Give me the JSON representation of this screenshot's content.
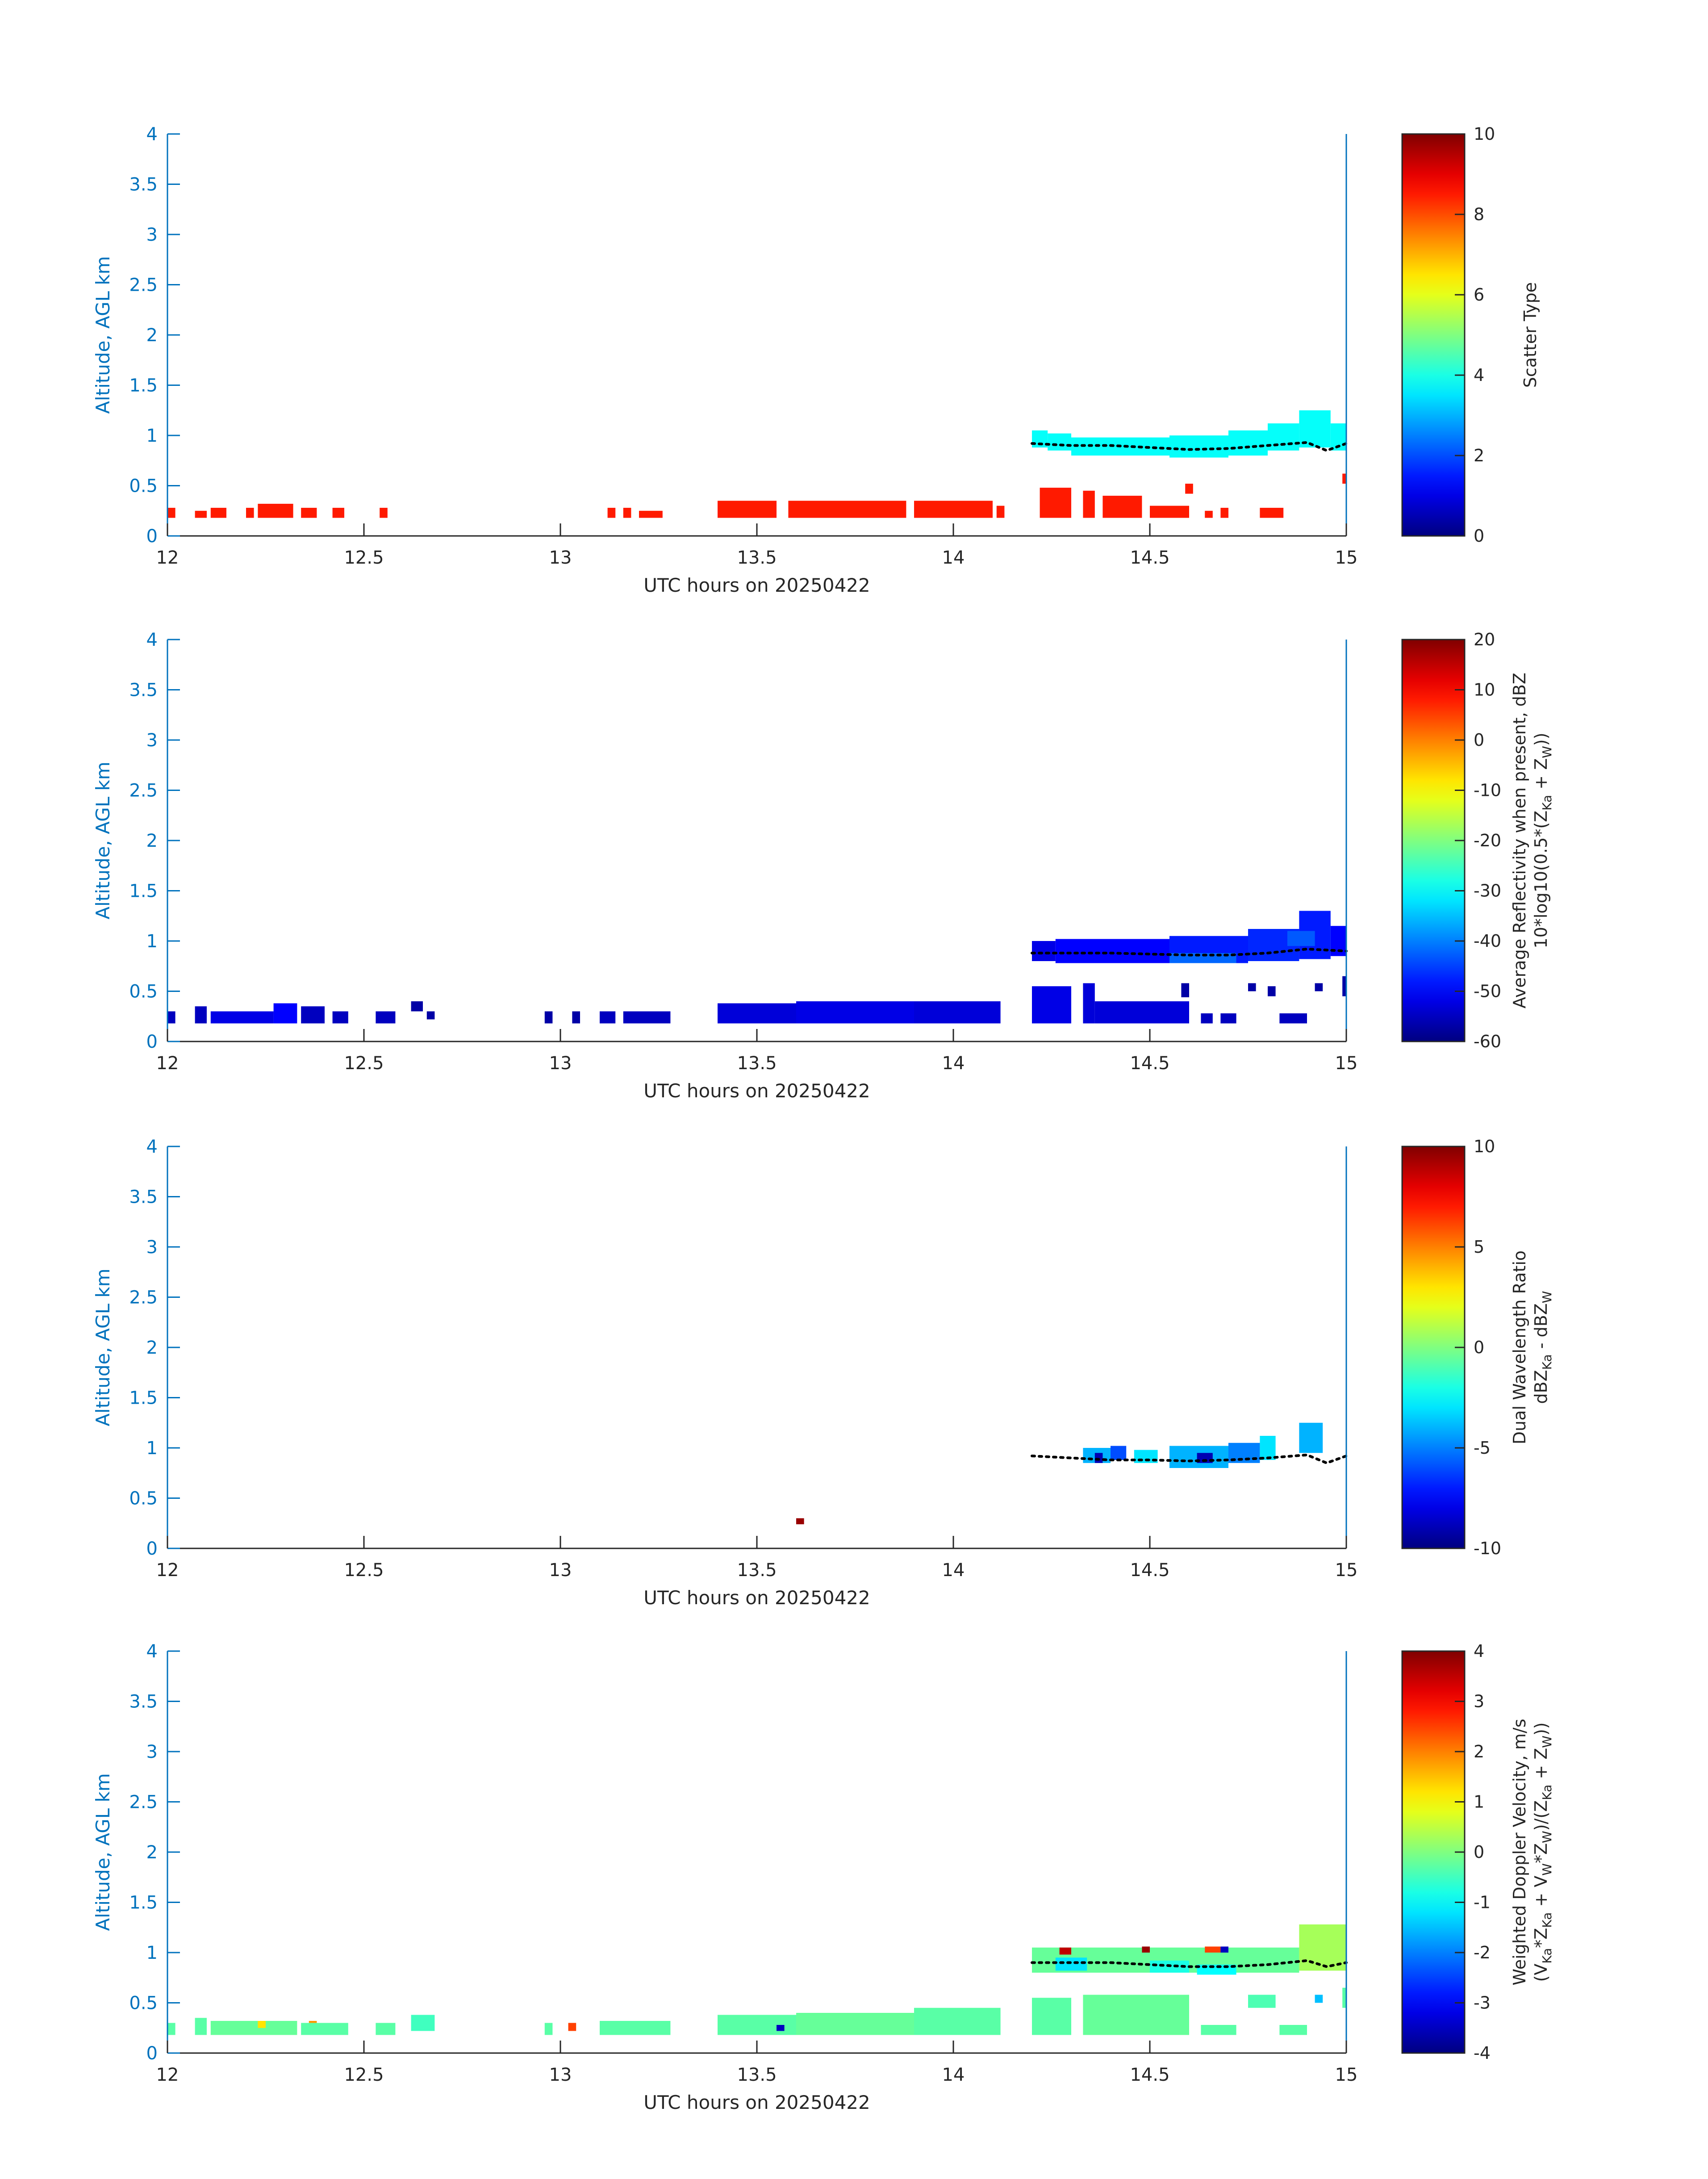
{
  "figure": {
    "date": "20250422"
  },
  "chart_data": [
    {
      "type": "heatmap",
      "title": "",
      "xlabel": "UTC hours on 20250422",
      "ylabel": "Altitude, AGL km",
      "xlim": [
        12,
        15
      ],
      "ylim": [
        0,
        4
      ],
      "xticks": [
        "12",
        "12.5",
        "13",
        "13.5",
        "14",
        "14.5",
        "15"
      ],
      "yticks": [
        "0",
        "0.5",
        "1",
        "1.5",
        "2",
        "2.5",
        "3",
        "3.5",
        "4"
      ],
      "colorbar": {
        "label_lines": [
          "Scatter Type"
        ],
        "clim": [
          0,
          10
        ],
        "ticks": [
          "0",
          "2",
          "4",
          "6",
          "8",
          "10"
        ]
      },
      "cloud_base": [
        [
          14.2,
          0.92
        ],
        [
          14.3,
          0.9
        ],
        [
          14.4,
          0.9
        ],
        [
          14.5,
          0.88
        ],
        [
          14.6,
          0.86
        ],
        [
          14.7,
          0.87
        ],
        [
          14.8,
          0.9
        ],
        [
          14.9,
          0.93
        ],
        [
          14.95,
          0.85
        ],
        [
          15.0,
          0.92
        ]
      ],
      "cells": [
        {
          "x0": 12.0,
          "x1": 12.02,
          "y0": 0.18,
          "y1": 0.28,
          "v": 8.5
        },
        {
          "x0": 12.07,
          "x1": 12.1,
          "y0": 0.18,
          "y1": 0.25,
          "v": 8.5
        },
        {
          "x0": 12.11,
          "x1": 12.15,
          "y0": 0.18,
          "y1": 0.28,
          "v": 8.5
        },
        {
          "x0": 12.2,
          "x1": 12.22,
          "y0": 0.18,
          "y1": 0.28,
          "v": 8.5
        },
        {
          "x0": 12.23,
          "x1": 12.32,
          "y0": 0.18,
          "y1": 0.32,
          "v": 8.5
        },
        {
          "x0": 12.34,
          "x1": 12.38,
          "y0": 0.18,
          "y1": 0.28,
          "v": 8.5
        },
        {
          "x0": 12.42,
          "x1": 12.45,
          "y0": 0.18,
          "y1": 0.28,
          "v": 8.5
        },
        {
          "x0": 12.54,
          "x1": 12.56,
          "y0": 0.18,
          "y1": 0.28,
          "v": 8.5
        },
        {
          "x0": 13.12,
          "x1": 13.14,
          "y0": 0.18,
          "y1": 0.28,
          "v": 8.5
        },
        {
          "x0": 13.16,
          "x1": 13.18,
          "y0": 0.18,
          "y1": 0.28,
          "v": 8.5
        },
        {
          "x0": 13.2,
          "x1": 13.26,
          "y0": 0.18,
          "y1": 0.25,
          "v": 8.5
        },
        {
          "x0": 13.4,
          "x1": 13.55,
          "y0": 0.18,
          "y1": 0.35,
          "v": 8.5
        },
        {
          "x0": 13.58,
          "x1": 13.88,
          "y0": 0.18,
          "y1": 0.35,
          "v": 8.5
        },
        {
          "x0": 13.9,
          "x1": 14.1,
          "y0": 0.18,
          "y1": 0.35,
          "v": 8.5
        },
        {
          "x0": 14.11,
          "x1": 14.13,
          "y0": 0.18,
          "y1": 0.3,
          "v": 8.5
        },
        {
          "x0": 14.22,
          "x1": 14.3,
          "y0": 0.18,
          "y1": 0.48,
          "v": 8.5
        },
        {
          "x0": 14.33,
          "x1": 14.36,
          "y0": 0.18,
          "y1": 0.45,
          "v": 8.5
        },
        {
          "x0": 14.38,
          "x1": 14.48,
          "y0": 0.18,
          "y1": 0.4,
          "v": 8.5
        },
        {
          "x0": 14.5,
          "x1": 14.6,
          "y0": 0.18,
          "y1": 0.3,
          "v": 8.5
        },
        {
          "x0": 14.59,
          "x1": 14.61,
          "y0": 0.42,
          "y1": 0.52,
          "v": 8.5
        },
        {
          "x0": 14.64,
          "x1": 14.66,
          "y0": 0.18,
          "y1": 0.25,
          "v": 8.5
        },
        {
          "x0": 14.68,
          "x1": 14.7,
          "y0": 0.18,
          "y1": 0.28,
          "v": 8.5
        },
        {
          "x0": 14.78,
          "x1": 14.84,
          "y0": 0.18,
          "y1": 0.28,
          "v": 8.5
        },
        {
          "x0": 14.99,
          "x1": 15.0,
          "y0": 0.52,
          "y1": 0.62,
          "v": 8.5
        },
        {
          "x0": 14.2,
          "x1": 14.24,
          "y0": 0.88,
          "y1": 1.05,
          "v": 3.8
        },
        {
          "x0": 14.24,
          "x1": 14.3,
          "y0": 0.85,
          "y1": 1.02,
          "v": 3.8
        },
        {
          "x0": 14.3,
          "x1": 14.55,
          "y0": 0.8,
          "y1": 0.98,
          "v": 3.8
        },
        {
          "x0": 14.55,
          "x1": 14.7,
          "y0": 0.78,
          "y1": 1.0,
          "v": 3.8
        },
        {
          "x0": 14.7,
          "x1": 14.8,
          "y0": 0.8,
          "y1": 1.05,
          "v": 3.8
        },
        {
          "x0": 14.8,
          "x1": 14.88,
          "y0": 0.85,
          "y1": 1.12,
          "v": 3.8
        },
        {
          "x0": 14.88,
          "x1": 14.96,
          "y0": 0.88,
          "y1": 1.25,
          "v": 3.8
        },
        {
          "x0": 14.96,
          "x1": 15.0,
          "y0": 0.85,
          "y1": 1.12,
          "v": 3.8
        }
      ]
    },
    {
      "type": "heatmap",
      "title": "",
      "xlabel": "UTC hours on 20250422",
      "ylabel": "Altitude, AGL km",
      "xlim": [
        12,
        15
      ],
      "ylim": [
        0,
        4
      ],
      "xticks": [
        "12",
        "12.5",
        "13",
        "13.5",
        "14",
        "14.5",
        "15"
      ],
      "yticks": [
        "0",
        "0.5",
        "1",
        "1.5",
        "2",
        "2.5",
        "3",
        "3.5",
        "4"
      ],
      "colorbar": {
        "label_lines": [
          "Average Reflectivity when present, dBZ",
          "10*log10(0.5*(Z_Ka + Z_W))"
        ],
        "clim": [
          -60,
          20
        ],
        "ticks": [
          "-60",
          "-50",
          "-40",
          "-30",
          "-20",
          "-10",
          "0",
          "10",
          "20"
        ]
      },
      "cloud_base": [
        [
          14.2,
          0.88
        ],
        [
          14.3,
          0.88
        ],
        [
          14.4,
          0.88
        ],
        [
          14.5,
          0.87
        ],
        [
          14.6,
          0.86
        ],
        [
          14.7,
          0.86
        ],
        [
          14.8,
          0.88
        ],
        [
          14.9,
          0.92
        ],
        [
          15.0,
          0.9
        ]
      ],
      "cells": [
        {
          "x0": 12.0,
          "x1": 12.02,
          "y0": 0.18,
          "y1": 0.3,
          "v": -55
        },
        {
          "x0": 12.07,
          "x1": 12.1,
          "y0": 0.18,
          "y1": 0.35,
          "v": -55
        },
        {
          "x0": 12.11,
          "x1": 12.27,
          "y0": 0.18,
          "y1": 0.3,
          "v": -52
        },
        {
          "x0": 12.27,
          "x1": 12.33,
          "y0": 0.18,
          "y1": 0.38,
          "v": -50
        },
        {
          "x0": 12.34,
          "x1": 12.4,
          "y0": 0.18,
          "y1": 0.35,
          "v": -55
        },
        {
          "x0": 12.42,
          "x1": 12.46,
          "y0": 0.18,
          "y1": 0.3,
          "v": -55
        },
        {
          "x0": 12.53,
          "x1": 12.58,
          "y0": 0.18,
          "y1": 0.3,
          "v": -55
        },
        {
          "x0": 12.62,
          "x1": 12.65,
          "y0": 0.3,
          "y1": 0.4,
          "v": -57
        },
        {
          "x0": 12.66,
          "x1": 12.68,
          "y0": 0.22,
          "y1": 0.3,
          "v": -57
        },
        {
          "x0": 12.96,
          "x1": 12.98,
          "y0": 0.18,
          "y1": 0.3,
          "v": -57
        },
        {
          "x0": 13.03,
          "x1": 13.05,
          "y0": 0.18,
          "y1": 0.3,
          "v": -57
        },
        {
          "x0": 13.1,
          "x1": 13.14,
          "y0": 0.18,
          "y1": 0.3,
          "v": -55
        },
        {
          "x0": 13.16,
          "x1": 13.28,
          "y0": 0.18,
          "y1": 0.3,
          "v": -55
        },
        {
          "x0": 13.4,
          "x1": 13.6,
          "y0": 0.18,
          "y1": 0.38,
          "v": -53
        },
        {
          "x0": 13.6,
          "x1": 13.9,
          "y0": 0.18,
          "y1": 0.4,
          "v": -52
        },
        {
          "x0": 13.9,
          "x1": 14.12,
          "y0": 0.18,
          "y1": 0.4,
          "v": -53
        },
        {
          "x0": 14.2,
          "x1": 14.3,
          "y0": 0.18,
          "y1": 0.55,
          "v": -52
        },
        {
          "x0": 14.33,
          "x1": 14.36,
          "y0": 0.18,
          "y1": 0.58,
          "v": -53
        },
        {
          "x0": 14.36,
          "x1": 14.6,
          "y0": 0.18,
          "y1": 0.4,
          "v": -53
        },
        {
          "x0": 14.58,
          "x1": 14.6,
          "y0": 0.44,
          "y1": 0.58,
          "v": -57
        },
        {
          "x0": 14.63,
          "x1": 14.66,
          "y0": 0.18,
          "y1": 0.28,
          "v": -55
        },
        {
          "x0": 14.68,
          "x1": 14.72,
          "y0": 0.18,
          "y1": 0.28,
          "v": -55
        },
        {
          "x0": 14.75,
          "x1": 14.77,
          "y0": 0.5,
          "y1": 0.58,
          "v": -57
        },
        {
          "x0": 14.8,
          "x1": 14.82,
          "y0": 0.45,
          "y1": 0.55,
          "v": -57
        },
        {
          "x0": 14.83,
          "x1": 14.9,
          "y0": 0.18,
          "y1": 0.28,
          "v": -55
        },
        {
          "x0": 14.92,
          "x1": 14.94,
          "y0": 0.5,
          "y1": 0.58,
          "v": -57
        },
        {
          "x0": 14.99,
          "x1": 15.0,
          "y0": 0.45,
          "y1": 0.65,
          "v": -57
        },
        {
          "x0": 14.2,
          "x1": 14.26,
          "y0": 0.8,
          "y1": 1.0,
          "v": -52
        },
        {
          "x0": 14.26,
          "x1": 14.55,
          "y0": 0.78,
          "y1": 1.02,
          "v": -50
        },
        {
          "x0": 14.55,
          "x1": 14.75,
          "y0": 0.78,
          "y1": 1.05,
          "v": -48
        },
        {
          "x0": 14.75,
          "x1": 14.88,
          "y0": 0.8,
          "y1": 1.12,
          "v": -47
        },
        {
          "x0": 14.88,
          "x1": 14.96,
          "y0": 0.82,
          "y1": 1.3,
          "v": -48
        },
        {
          "x0": 14.96,
          "x1": 15.0,
          "y0": 0.85,
          "y1": 1.15,
          "v": -50
        },
        {
          "x0": 14.55,
          "x1": 14.72,
          "y0": 0.78,
          "y1": 0.88,
          "v": -42
        },
        {
          "x0": 14.85,
          "x1": 14.92,
          "y0": 0.95,
          "y1": 1.1,
          "v": -43
        }
      ]
    },
    {
      "type": "heatmap",
      "title": "",
      "xlabel": "UTC hours on 20250422",
      "ylabel": "Altitude, AGL km",
      "xlim": [
        12,
        15
      ],
      "ylim": [
        0,
        4
      ],
      "xticks": [
        "12",
        "12.5",
        "13",
        "13.5",
        "14",
        "14.5",
        "15"
      ],
      "yticks": [
        "0",
        "0.5",
        "1",
        "1.5",
        "2",
        "2.5",
        "3",
        "3.5",
        "4"
      ],
      "colorbar": {
        "label_lines": [
          "Dual Wavelength Ratio",
          "dBZ_Ka - dBZ_W"
        ],
        "clim": [
          -10,
          10
        ],
        "ticks": [
          "-10",
          "-5",
          "0",
          "5",
          "10"
        ]
      },
      "cloud_base": [
        [
          14.2,
          0.92
        ],
        [
          14.3,
          0.9
        ],
        [
          14.4,
          0.88
        ],
        [
          14.5,
          0.88
        ],
        [
          14.6,
          0.87
        ],
        [
          14.7,
          0.88
        ],
        [
          14.8,
          0.9
        ],
        [
          14.9,
          0.93
        ],
        [
          14.95,
          0.85
        ],
        [
          15.0,
          0.92
        ]
      ],
      "cells": [
        {
          "x0": 13.6,
          "x1": 13.62,
          "y0": 0.24,
          "y1": 0.3,
          "v": 9.5
        },
        {
          "x0": 14.33,
          "x1": 14.4,
          "y0": 0.85,
          "y1": 1.0,
          "v": -4
        },
        {
          "x0": 14.4,
          "x1": 14.44,
          "y0": 0.88,
          "y1": 1.02,
          "v": -6
        },
        {
          "x0": 14.46,
          "x1": 14.52,
          "y0": 0.85,
          "y1": 0.98,
          "v": -3
        },
        {
          "x0": 14.55,
          "x1": 14.7,
          "y0": 0.8,
          "y1": 1.02,
          "v": -4
        },
        {
          "x0": 14.7,
          "x1": 14.78,
          "y0": 0.85,
          "y1": 1.05,
          "v": -5
        },
        {
          "x0": 14.78,
          "x1": 14.82,
          "y0": 0.88,
          "y1": 1.12,
          "v": -3
        },
        {
          "x0": 14.88,
          "x1": 14.94,
          "y0": 0.95,
          "y1": 1.25,
          "v": -4
        },
        {
          "x0": 14.62,
          "x1": 14.66,
          "y0": 0.85,
          "y1": 0.95,
          "v": -9
        },
        {
          "x0": 14.36,
          "x1": 14.38,
          "y0": 0.85,
          "y1": 0.95,
          "v": -9
        }
      ]
    },
    {
      "type": "heatmap",
      "title": "",
      "xlabel": "UTC hours on 20250422",
      "ylabel": "Altitude, AGL km",
      "xlim": [
        12,
        15
      ],
      "ylim": [
        0,
        4
      ],
      "xticks": [
        "12",
        "12.5",
        "13",
        "13.5",
        "14",
        "14.5",
        "15"
      ],
      "yticks": [
        "0",
        "0.5",
        "1",
        "1.5",
        "2",
        "2.5",
        "3",
        "3.5",
        "4"
      ],
      "colorbar": {
        "label_lines": [
          "Weighted Doppler Velocity, m/s",
          "(V_Ka*Z_Ka + V_W*Z_W)/(Z_Ka + Z_W))"
        ],
        "clim": [
          -4,
          4
        ],
        "ticks": [
          "-4",
          "-3",
          "-2",
          "-1",
          "0",
          "1",
          "2",
          "3",
          "4"
        ]
      },
      "cloud_base": [
        [
          14.2,
          0.9
        ],
        [
          14.3,
          0.9
        ],
        [
          14.4,
          0.9
        ],
        [
          14.5,
          0.88
        ],
        [
          14.6,
          0.86
        ],
        [
          14.7,
          0.86
        ],
        [
          14.8,
          0.88
        ],
        [
          14.9,
          0.92
        ],
        [
          14.95,
          0.86
        ],
        [
          15.0,
          0.9
        ]
      ],
      "cells": [
        {
          "x0": 12.0,
          "x1": 12.02,
          "y0": 0.18,
          "y1": 0.3,
          "v": -0.3
        },
        {
          "x0": 12.07,
          "x1": 12.1,
          "y0": 0.18,
          "y1": 0.35,
          "v": -0.3
        },
        {
          "x0": 12.11,
          "x1": 12.33,
          "y0": 0.18,
          "y1": 0.32,
          "v": -0.2
        },
        {
          "x0": 12.23,
          "x1": 12.25,
          "y0": 0.25,
          "y1": 0.32,
          "v": 1.2
        },
        {
          "x0": 12.36,
          "x1": 12.38,
          "y0": 0.25,
          "y1": 0.32,
          "v": 1.8
        },
        {
          "x0": 12.34,
          "x1": 12.46,
          "y0": 0.18,
          "y1": 0.3,
          "v": -0.3
        },
        {
          "x0": 12.53,
          "x1": 12.58,
          "y0": 0.18,
          "y1": 0.3,
          "v": -0.3
        },
        {
          "x0": 12.62,
          "x1": 12.68,
          "y0": 0.22,
          "y1": 0.38,
          "v": -0.5
        },
        {
          "x0": 12.96,
          "x1": 12.98,
          "y0": 0.18,
          "y1": 0.3,
          "v": -0.3
        },
        {
          "x0": 13.02,
          "x1": 13.04,
          "y0": 0.22,
          "y1": 0.3,
          "v": 2.5
        },
        {
          "x0": 13.1,
          "x1": 13.28,
          "y0": 0.18,
          "y1": 0.32,
          "v": -0.3
        },
        {
          "x0": 13.4,
          "x1": 13.6,
          "y0": 0.18,
          "y1": 0.38,
          "v": -0.3
        },
        {
          "x0": 13.55,
          "x1": 13.57,
          "y0": 0.22,
          "y1": 0.28,
          "v": -3.5
        },
        {
          "x0": 13.6,
          "x1": 13.9,
          "y0": 0.18,
          "y1": 0.4,
          "v": -0.2
        },
        {
          "x0": 13.9,
          "x1": 14.12,
          "y0": 0.18,
          "y1": 0.45,
          "v": -0.3
        },
        {
          "x0": 14.2,
          "x1": 14.3,
          "y0": 0.18,
          "y1": 0.55,
          "v": -0.3
        },
        {
          "x0": 14.33,
          "x1": 14.6,
          "y0": 0.18,
          "y1": 0.58,
          "v": -0.2
        },
        {
          "x0": 14.63,
          "x1": 14.72,
          "y0": 0.18,
          "y1": 0.28,
          "v": -0.3
        },
        {
          "x0": 14.75,
          "x1": 14.82,
          "y0": 0.45,
          "y1": 0.58,
          "v": -0.4
        },
        {
          "x0": 14.83,
          "x1": 14.9,
          "y0": 0.18,
          "y1": 0.28,
          "v": -0.3
        },
        {
          "x0": 14.92,
          "x1": 14.94,
          "y0": 0.5,
          "y1": 0.58,
          "v": -1.5
        },
        {
          "x0": 14.99,
          "x1": 15.0,
          "y0": 0.45,
          "y1": 0.65,
          "v": -0.3
        },
        {
          "x0": 14.2,
          "x1": 14.88,
          "y0": 0.8,
          "y1": 1.05,
          "v": -0.2
        },
        {
          "x0": 14.26,
          "x1": 14.34,
          "y0": 0.82,
          "y1": 0.95,
          "v": -1.2
        },
        {
          "x0": 14.5,
          "x1": 14.6,
          "y0": 0.8,
          "y1": 0.92,
          "v": -0.8
        },
        {
          "x0": 14.62,
          "x1": 14.72,
          "y0": 0.78,
          "y1": 0.88,
          "v": -1.0
        },
        {
          "x0": 14.88,
          "x1": 15.0,
          "y0": 0.82,
          "y1": 1.28,
          "v": 0.3
        },
        {
          "x0": 14.27,
          "x1": 14.3,
          "y0": 0.98,
          "y1": 1.05,
          "v": 3.5
        },
        {
          "x0": 14.48,
          "x1": 14.5,
          "y0": 1.0,
          "y1": 1.06,
          "v": 3.8
        },
        {
          "x0": 14.64,
          "x1": 14.68,
          "y0": 1.0,
          "y1": 1.06,
          "v": 2.5
        },
        {
          "x0": 14.68,
          "x1": 14.7,
          "y0": 1.0,
          "y1": 1.06,
          "v": -3.5
        }
      ]
    }
  ]
}
